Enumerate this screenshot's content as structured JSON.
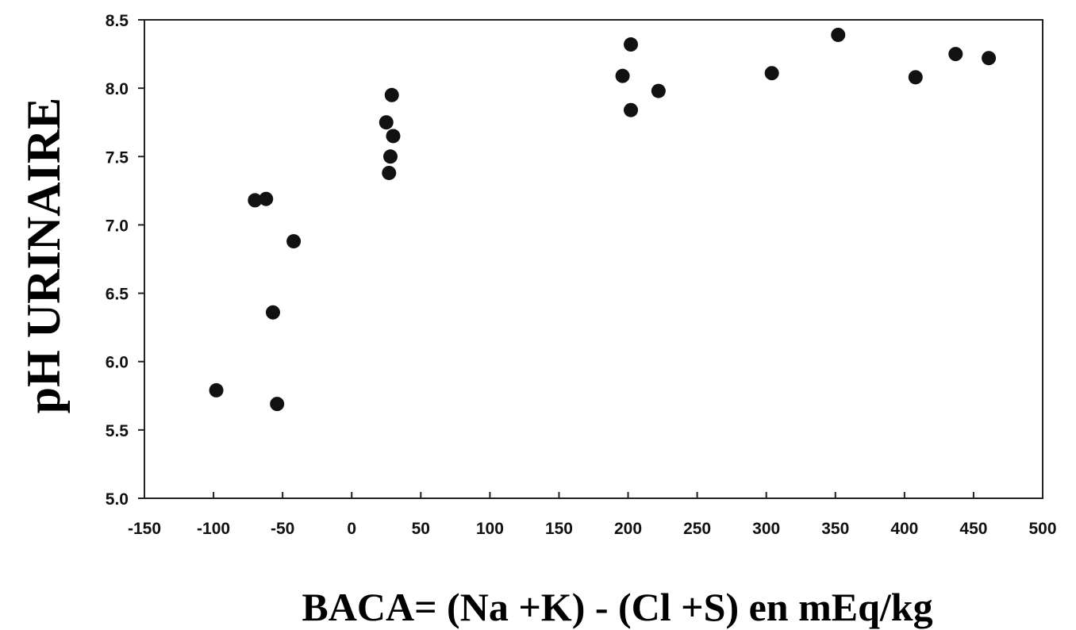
{
  "chart_data": {
    "type": "scatter",
    "title": "",
    "xlabel": "BACA= (Na +K) - (Cl +S) en  mEq/kg",
    "ylabel": "pH URINAIRE",
    "xlim": [
      -150,
      500
    ],
    "ylim": [
      5.0,
      8.5
    ],
    "x_ticks": [
      -150,
      -100,
      -50,
      0,
      50,
      100,
      150,
      200,
      250,
      300,
      350,
      400,
      450,
      500
    ],
    "x_tick_labels": [
      "-150",
      "-100",
      "-50",
      "0",
      "50",
      "100",
      "150",
      "200",
      "250",
      "300",
      "350",
      "400",
      "450",
      "500"
    ],
    "y_ticks": [
      5.0,
      5.5,
      6.0,
      6.5,
      7.0,
      7.5,
      8.0,
      8.5
    ],
    "y_tick_labels": [
      "5.0",
      "5.5",
      "6.0",
      "6.5",
      "7.0",
      "7.5",
      "8.0",
      "8.5"
    ],
    "grid": false,
    "legend": "none",
    "marker_color": "#111111",
    "points": [
      {
        "x": -98,
        "y": 5.79
      },
      {
        "x": -54,
        "y": 5.69
      },
      {
        "x": -57,
        "y": 6.36
      },
      {
        "x": -42,
        "y": 6.88
      },
      {
        "x": -70,
        "y": 7.18
      },
      {
        "x": -62,
        "y": 7.19
      },
      {
        "x": 25,
        "y": 7.75
      },
      {
        "x": 27,
        "y": 7.38
      },
      {
        "x": 28,
        "y": 7.5
      },
      {
        "x": 30,
        "y": 7.65
      },
      {
        "x": 29,
        "y": 7.95
      },
      {
        "x": 196,
        "y": 8.09
      },
      {
        "x": 202,
        "y": 8.32
      },
      {
        "x": 202,
        "y": 7.84
      },
      {
        "x": 222,
        "y": 7.98
      },
      {
        "x": 304,
        "y": 8.11
      },
      {
        "x": 352,
        "y": 8.39
      },
      {
        "x": 408,
        "y": 8.08
      },
      {
        "x": 437,
        "y": 8.25
      },
      {
        "x": 461,
        "y": 8.22
      }
    ]
  }
}
